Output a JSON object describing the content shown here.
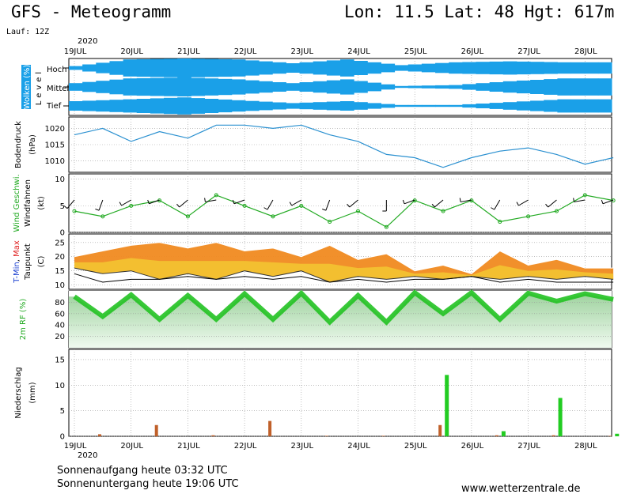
{
  "header": {
    "title": "GFS - Meteogramm",
    "location": "Lon: 11.5 Lat: 48 Hgt: 617m",
    "run": "Lauf: 12Z",
    "year_top": "2020",
    "year_bottom": "2020"
  },
  "footer": {
    "sunrise": "Sonnenaufgang heute 03:32 UTC",
    "sunset": "Sonnenuntergang heute 19:06 UTC",
    "site": "www.wetterzentrale.de"
  },
  "colors": {
    "cloud": "#1aa0e8",
    "pressure": "#2a90d0",
    "wind_speed": "#22aa22",
    "temp_warm": "#f08a20",
    "temp_mild": "#f2c230",
    "rh_fill": "#22c222",
    "rain_conv": "#c0602a",
    "rain_large": "#22cc22",
    "grid": "#999999"
  },
  "chart_data": [
    {
      "type": "heatmap",
      "panel": "clouds",
      "ylabel_a": "Wolken (%)",
      "ylabel_b": "Level",
      "levels": [
        "Hoch",
        "Mittel",
        "Tief"
      ],
      "x_categories": [
        "19JUL",
        "20JUL",
        "21JUL",
        "22JUL",
        "23JUL",
        "24JUL",
        "25JUL",
        "26JUL",
        "27JUL",
        "28JUL"
      ],
      "cover_high": [
        0.2,
        0.9,
        1.0,
        0.9,
        0.5,
        0.9,
        0.3,
        0.6,
        0.7,
        0.6
      ],
      "cover_middle": [
        0.4,
        0.9,
        1.0,
        0.8,
        0.4,
        0.8,
        0.1,
        0.2,
        0.6,
        0.9
      ],
      "cover_low": [
        0.5,
        0.7,
        0.9,
        0.6,
        0.3,
        0.5,
        0.1,
        0.1,
        0.4,
        0.7
      ]
    },
    {
      "type": "line",
      "panel": "pressure",
      "ylabel_a": "Bodendruck",
      "ylabel_b": "(hPa)",
      "yticks": [
        1010,
        1015,
        1020
      ],
      "ylim": [
        1006.5,
        1023.5
      ],
      "x": [
        0,
        0.5,
        1,
        1.5,
        2,
        2.5,
        3,
        3.5,
        4,
        4.5,
        5,
        5.5,
        6,
        6.5,
        7,
        7.5,
        8,
        8.5,
        9,
        9.5
      ],
      "values": [
        1018,
        1020,
        1016,
        1019,
        1017,
        1021,
        1021,
        1020,
        1021,
        1018,
        1016,
        1012,
        1011,
        1008,
        1011,
        1013,
        1014,
        1012,
        1009,
        1011
      ]
    },
    {
      "type": "line",
      "panel": "wind",
      "series_name": "Wind Geschwi.",
      "barbs_label": "Windfahnen",
      "unit": "(kt)",
      "yticks": [
        0,
        5,
        10
      ],
      "ylim": [
        0,
        11
      ],
      "x": [
        0,
        0.5,
        1,
        1.5,
        2,
        2.5,
        3,
        3.5,
        4,
        4.5,
        5,
        5.5,
        6,
        6.5,
        7,
        7.5,
        8,
        8.5,
        9,
        9.5
      ],
      "values": [
        4,
        3,
        5,
        6,
        3,
        7,
        5,
        3,
        5,
        2,
        4,
        1,
        6,
        4,
        6,
        2,
        3,
        4,
        7,
        6
      ],
      "barb_directions": [
        220,
        200,
        240,
        250,
        230,
        260,
        250,
        210,
        240,
        200,
        230,
        180,
        250,
        230,
        260,
        210,
        240,
        230,
        260,
        250
      ]
    },
    {
      "type": "area",
      "panel": "temperature",
      "label_min": "T-Min",
      "label_max": "Max",
      "label_dew": "Taupunkt",
      "unit": "(C)",
      "yticks": [
        10,
        15,
        20,
        25
      ],
      "ylim": [
        8.5,
        28
      ],
      "x": [
        0,
        0.5,
        1,
        1.5,
        2,
        2.5,
        3,
        3.5,
        4,
        4.5,
        5,
        5.5,
        6,
        6.5,
        7,
        7.5,
        8,
        8.5,
        9,
        9.5
      ],
      "t_max": [
        20,
        22,
        24,
        25,
        23,
        25,
        22,
        23,
        20,
        24,
        19,
        21,
        15,
        17,
        14,
        22,
        17,
        19,
        16,
        16
      ],
      "t_min": [
        16,
        14,
        15,
        12,
        14,
        12,
        15,
        13,
        15,
        11,
        13,
        12,
        13,
        12,
        13,
        12,
        13,
        12,
        13,
        12
      ],
      "dewpoint": [
        14,
        11,
        12,
        12,
        13,
        12,
        13,
        12,
        13,
        11,
        12,
        11,
        12,
        12,
        13,
        11,
        12,
        11,
        11,
        11
      ]
    },
    {
      "type": "area",
      "panel": "humidity",
      "ylabel": "2m RF (%)",
      "yticks": [
        20,
        40,
        60,
        80
      ],
      "ylim": [
        0,
        100
      ],
      "x": [
        0,
        0.5,
        1,
        1.5,
        2,
        2.5,
        3,
        3.5,
        4,
        4.5,
        5,
        5.5,
        6,
        6.5,
        7,
        7.5,
        8,
        8.5,
        9,
        9.5
      ],
      "values": [
        90,
        55,
        93,
        50,
        92,
        50,
        95,
        50,
        96,
        45,
        92,
        45,
        97,
        60,
        97,
        50,
        96,
        82,
        95,
        85
      ]
    },
    {
      "type": "bar",
      "panel": "precipitation",
      "ylabel_a": "Niederschlag",
      "ylabel_b": "(mm)",
      "yticks": [
        0,
        5,
        10,
        15
      ],
      "ylim": [
        0,
        17
      ],
      "x_categories": [
        "19JUL",
        "20JUL",
        "21JUL",
        "22JUL",
        "23JUL",
        "24JUL",
        "25JUL",
        "26JUL",
        "27JUL",
        "28JUL"
      ],
      "large_scale": [
        0,
        0,
        0,
        0,
        0,
        0,
        12,
        1,
        7.5,
        0.5
      ],
      "convective": [
        0.4,
        2.2,
        0.2,
        3.0,
        0.1,
        0.1,
        2.2,
        0.2,
        0.2,
        0.1
      ]
    }
  ]
}
